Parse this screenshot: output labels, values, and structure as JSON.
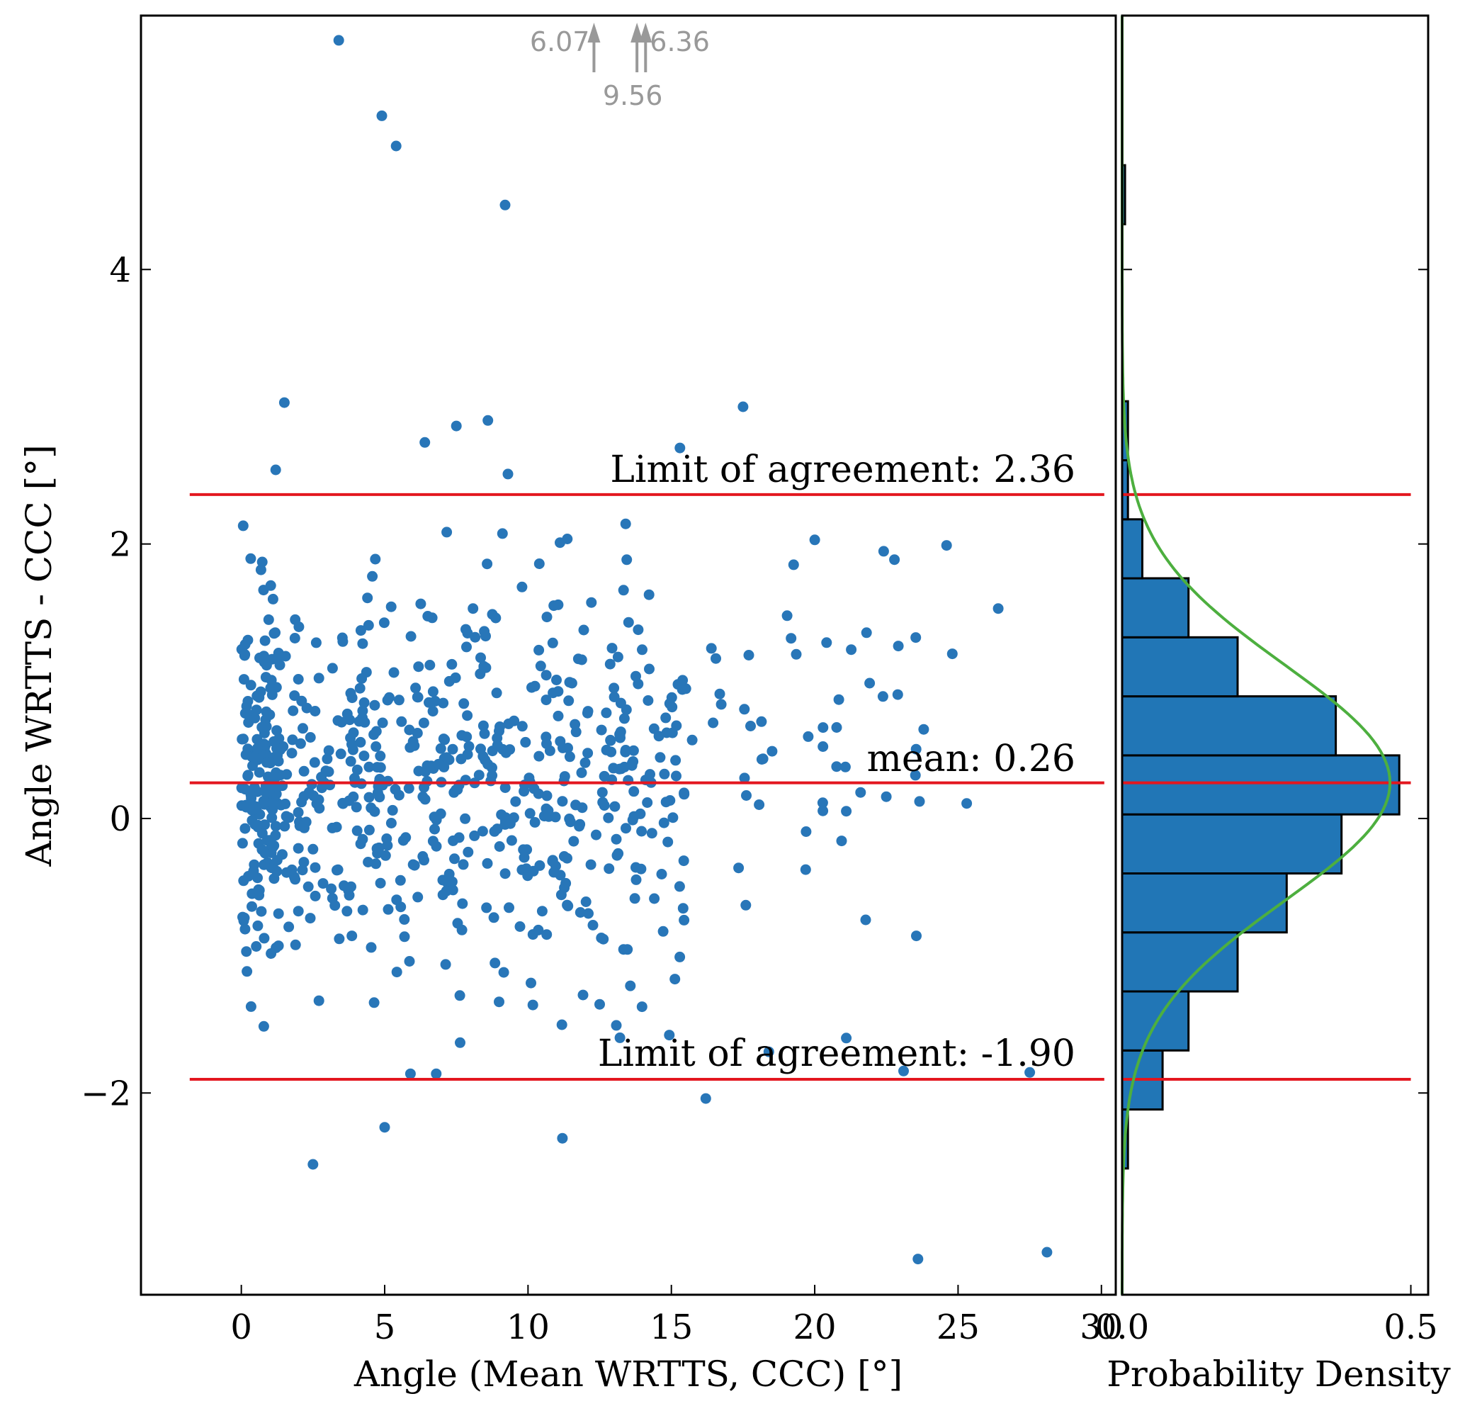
{
  "chart_data": {
    "type": "scatter",
    "title": "",
    "xlabel": "Angle (Mean WRTTS, CCC) [°]",
    "ylabel": "Angle WRTTS - CCC [°]",
    "xlim": [
      -3.5,
      30.5
    ],
    "ylim": [
      -3.47,
      5.85
    ],
    "xticks": [
      0,
      5,
      10,
      15,
      20,
      25,
      30
    ],
    "yticks": [
      -2,
      0,
      2,
      4
    ],
    "x_tick_labels": [
      "0",
      "5",
      "10",
      "15",
      "20",
      "25",
      "30"
    ],
    "y_tick_labels": [
      "−2",
      "0",
      "2",
      "4"
    ],
    "hline_range": [
      -1.8,
      30.1
    ],
    "mean": 0.26,
    "loa_upper": 2.36,
    "loa_lower": -1.9,
    "mean_label": "mean:  0.26",
    "loa_upper_label": "Limit of agreement:  2.36",
    "loa_lower_label": "Limit of agreement:  -1.90",
    "offscale_points": [
      {
        "x": 12.3,
        "y": 6.07,
        "label": "6.07"
      },
      {
        "x": 13.8,
        "y": 9.56,
        "label": "9.56"
      },
      {
        "x": 14.1,
        "y": 6.36,
        "label": "6.36"
      }
    ],
    "scatter_color": "#2876b8",
    "line_color": "#e3171f",
    "point_seed": 7,
    "notable_points": [
      [
        3.4,
        5.67
      ],
      [
        4.9,
        5.12
      ],
      [
        5.4,
        4.9
      ],
      [
        9.2,
        4.47
      ],
      [
        1.5,
        3.03
      ],
      [
        7.5,
        2.86
      ],
      [
        8.6,
        2.9
      ],
      [
        17.5,
        3.0
      ],
      [
        1.2,
        2.54
      ],
      [
        6.4,
        2.74
      ],
      [
        15.3,
        2.7
      ],
      [
        9.3,
        2.51
      ],
      [
        20.0,
        2.03
      ],
      [
        24.6,
        1.99
      ],
      [
        26.4,
        1.53
      ],
      [
        24.8,
        1.2
      ],
      [
        25.3,
        0.11
      ],
      [
        21.6,
        0.19
      ],
      [
        2.5,
        -2.52
      ],
      [
        5.0,
        -2.25
      ],
      [
        11.2,
        -2.33
      ],
      [
        16.2,
        -2.04
      ],
      [
        23.6,
        -3.21
      ],
      [
        28.1,
        -3.16
      ],
      [
        27.5,
        -1.85
      ],
      [
        23.1,
        -1.84
      ],
      [
        21.1,
        -1.6
      ],
      [
        18.4,
        -1.7
      ],
      [
        6.8,
        -1.86
      ],
      [
        5.9,
        -1.86
      ]
    ],
    "histogram": {
      "xlabel": "Probability Density",
      "xlim": [
        0.0,
        0.53
      ],
      "xticks": [
        0.0,
        0.5
      ],
      "x_tick_labels": [
        "0.0",
        "0.5"
      ],
      "bin_edges": [
        -2.98,
        -2.55,
        -2.12,
        -1.69,
        -1.26,
        -0.83,
        -0.4,
        0.03,
        0.46,
        0.89,
        1.32,
        1.75,
        2.18,
        2.61,
        3.04,
        3.47,
        3.9,
        4.33,
        4.76,
        5.19,
        5.62
      ],
      "density": [
        0.0,
        0.01,
        0.07,
        0.115,
        0.2,
        0.285,
        0.38,
        0.48,
        0.37,
        0.2,
        0.115,
        0.035,
        0.01,
        0.01,
        0.0,
        0.0,
        0.0,
        0.005,
        0.0,
        0.0
      ],
      "bar_color": "#2176b6",
      "fit_mean": 0.26,
      "fit_sd": 0.86,
      "fit_color": "#4daf3f"
    }
  }
}
